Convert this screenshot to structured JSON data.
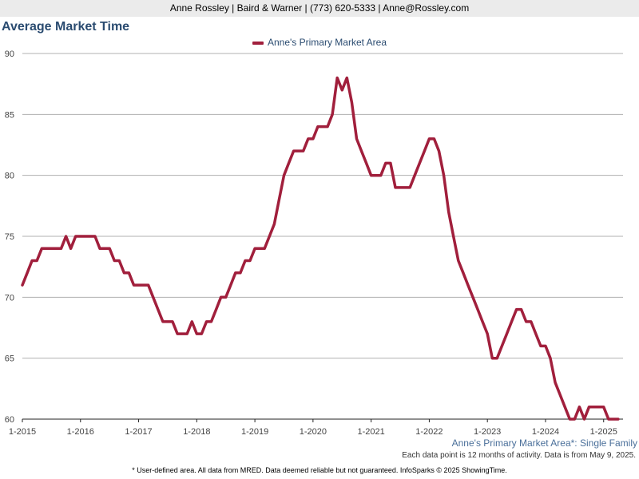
{
  "header": {
    "text": "Anne Rossley | Baird & Warner | (773) 620-5333 | Anne@Rossley.com"
  },
  "chart_data": {
    "type": "line",
    "title": "Average Market Time",
    "subtitle": "Anne's Primary Market Area*: Single Family",
    "note": "Each data point is 12 months of activity. Data is from May 9, 2025.",
    "footnote": "* User-defined area. All data from MRED. Data deemed reliable but not guaranteed. InfoSparks © 2025 ShowingTime.",
    "xlabel": "",
    "ylabel": "",
    "ylim": [
      60,
      90
    ],
    "y_ticks": [
      "60",
      "65",
      "70",
      "75",
      "80",
      "85",
      "90"
    ],
    "x_ticks": [
      "1-2015",
      "1-2016",
      "1-2017",
      "1-2018",
      "1-2019",
      "1-2020",
      "1-2021",
      "1-2022",
      "1-2023",
      "1-2024",
      "1-2025"
    ],
    "grid": true,
    "legend_position": "top-center",
    "colors": {
      "series": "#a11f3c",
      "grid": "#b0b0b0",
      "title": "#2a4b70"
    },
    "series": [
      {
        "name": "Anne's Primary Market Area",
        "x": [
          "2015-01",
          "2015-02",
          "2015-03",
          "2015-04",
          "2015-05",
          "2015-06",
          "2015-07",
          "2015-08",
          "2015-09",
          "2015-10",
          "2015-11",
          "2015-12",
          "2016-01",
          "2016-02",
          "2016-03",
          "2016-04",
          "2016-05",
          "2016-06",
          "2016-07",
          "2016-08",
          "2016-09",
          "2016-10",
          "2016-11",
          "2016-12",
          "2017-01",
          "2017-02",
          "2017-03",
          "2017-04",
          "2017-05",
          "2017-06",
          "2017-07",
          "2017-08",
          "2017-09",
          "2017-10",
          "2017-11",
          "2017-12",
          "2018-01",
          "2018-02",
          "2018-03",
          "2018-04",
          "2018-05",
          "2018-06",
          "2018-07",
          "2018-08",
          "2018-09",
          "2018-10",
          "2018-11",
          "2018-12",
          "2019-01",
          "2019-02",
          "2019-03",
          "2019-04",
          "2019-05",
          "2019-06",
          "2019-07",
          "2019-08",
          "2019-09",
          "2019-10",
          "2019-11",
          "2019-12",
          "2020-01",
          "2020-02",
          "2020-03",
          "2020-04",
          "2020-05",
          "2020-06",
          "2020-07",
          "2020-08",
          "2020-09",
          "2020-10",
          "2020-11",
          "2020-12",
          "2021-01",
          "2021-02",
          "2021-03",
          "2021-04",
          "2021-05",
          "2021-06",
          "2021-07",
          "2021-08",
          "2021-09",
          "2021-10",
          "2021-11",
          "2021-12",
          "2022-01",
          "2022-02",
          "2022-03",
          "2022-04",
          "2022-05",
          "2022-06",
          "2022-07",
          "2022-08",
          "2022-09",
          "2022-10",
          "2022-11",
          "2022-12",
          "2023-01",
          "2023-02",
          "2023-03",
          "2023-04",
          "2023-05",
          "2023-06",
          "2023-07",
          "2023-08",
          "2023-09",
          "2023-10",
          "2023-11",
          "2023-12",
          "2024-01",
          "2024-02",
          "2024-03",
          "2024-04",
          "2024-05",
          "2024-06",
          "2024-07",
          "2024-08",
          "2024-09",
          "2024-10",
          "2024-11",
          "2024-12",
          "2025-01",
          "2025-02",
          "2025-03",
          "2025-04"
        ],
        "values": [
          71,
          72,
          73,
          73,
          74,
          74,
          74,
          74,
          74,
          75,
          74,
          75,
          75,
          75,
          75,
          75,
          74,
          74,
          74,
          73,
          73,
          72,
          72,
          71,
          71,
          71,
          71,
          70,
          69,
          68,
          68,
          68,
          67,
          67,
          67,
          68,
          67,
          67,
          68,
          68,
          69,
          70,
          70,
          71,
          72,
          72,
          73,
          73,
          74,
          74,
          74,
          75,
          76,
          78,
          80,
          81,
          82,
          82,
          82,
          83,
          83,
          84,
          84,
          84,
          85,
          88,
          87,
          88,
          86,
          83,
          82,
          81,
          80,
          80,
          80,
          81,
          81,
          79,
          79,
          79,
          79,
          80,
          81,
          82,
          83,
          83,
          82,
          80,
          77,
          75,
          73,
          72,
          71,
          70,
          69,
          68,
          67,
          65,
          65,
          66,
          67,
          68,
          69,
          69,
          68,
          68,
          67,
          66,
          66,
          65,
          63,
          62,
          61,
          60,
          60,
          61,
          60,
          61,
          61,
          61,
          61,
          60,
          60,
          60
        ]
      }
    ]
  }
}
